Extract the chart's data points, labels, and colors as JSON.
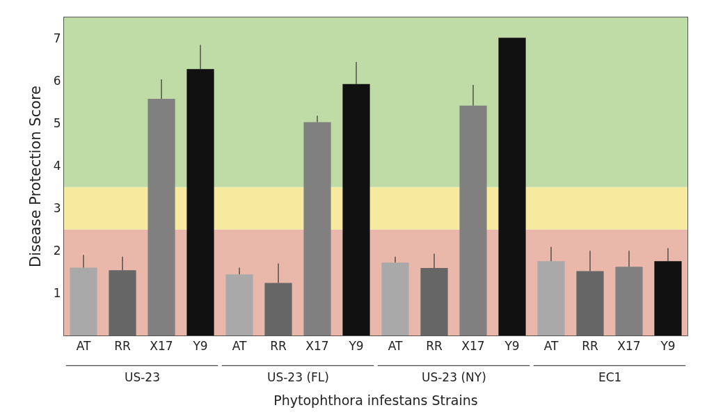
{
  "chart_data": {
    "type": "bar",
    "categories": [
      "AT",
      "RR",
      "X17",
      "Y9",
      "AT",
      "RR",
      "X17",
      "Y9",
      "AT",
      "RR",
      "X17",
      "Y9",
      "AT",
      "RR",
      "X17",
      "Y9"
    ],
    "values": [
      1.6,
      1.54,
      5.58,
      6.28,
      1.44,
      1.24,
      5.03,
      5.93,
      1.72,
      1.59,
      5.42,
      7.02,
      1.75,
      1.52,
      1.62,
      1.75
    ],
    "errors": [
      [
        1.6,
        1.9
      ],
      [
        1.54,
        1.86
      ],
      [
        5.58,
        6.04
      ],
      [
        6.28,
        6.85
      ],
      [
        1.44,
        1.6
      ],
      [
        1.24,
        1.7
      ],
      [
        5.03,
        5.18
      ],
      [
        5.93,
        6.45
      ],
      [
        1.72,
        1.86
      ],
      [
        1.59,
        1.93
      ],
      [
        5.42,
        5.91
      ],
      null,
      [
        1.75,
        2.09
      ],
      [
        1.52,
        2.0
      ],
      [
        1.62,
        2.0
      ],
      [
        1.75,
        2.06
      ]
    ],
    "colors": [
      "#a9a9a9",
      "#666666",
      "#808080",
      "#111111",
      "#a9a9a9",
      "#666666",
      "#808080",
      "#111111",
      "#a9a9a9",
      "#666666",
      "#808080",
      "#111111",
      "#a9a9a9",
      "#666666",
      "#808080",
      "#111111"
    ],
    "xlabel": "Phytophthora infestans Strains",
    "ylabel": "Disease Protection Score",
    "annotations": [
      "US-23",
      "US-23 (FL)",
      "US-23 (NY)",
      "EC1"
    ],
    "bands": [
      {
        "axis": "y",
        "from": 0,
        "to": 2.5,
        "color": "#e9b8ab"
      },
      {
        "axis": "y",
        "from": 2.5,
        "to": 3.5,
        "color": "#f6ea9e"
      },
      {
        "axis": "y",
        "from": 3.5,
        "to": 7.5,
        "color": "#bfdba6"
      }
    ],
    "ylim": [
      0,
      7.5
    ],
    "yticks": [
      1,
      2,
      3,
      4,
      5,
      6,
      7
    ],
    "grid": false,
    "legend": false
  }
}
